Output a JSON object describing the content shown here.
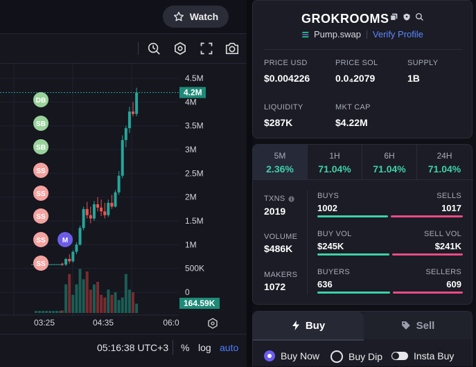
{
  "header": {
    "watch_label": "Watch"
  },
  "chart": {
    "current_price_tag": "4.2M",
    "volume_tag": "164.59K",
    "y_ticks": [
      "4.5M",
      "4M",
      "3.5M",
      "3M",
      "2.5M",
      "2M",
      "1.5M",
      "1M",
      "500K",
      "0"
    ],
    "x_ticks": [
      "03:25",
      "04:35",
      "06:0"
    ],
    "markers": [
      "DB",
      "SB",
      "SB",
      "SS",
      "SS",
      "SS",
      "SS",
      "SS"
    ],
    "m_marker": "M",
    "colors": {
      "up": "#26a69a",
      "down": "#ef5350",
      "buy_marker": "#9ad29b",
      "sell_marker": "#f4a3a0",
      "dev_marker": "#6c5ce7"
    },
    "candles": [
      {
        "o": 0.6,
        "h": 0.62,
        "l": 0.55,
        "c": 0.58
      },
      {
        "o": 0.58,
        "h": 0.72,
        "l": 0.55,
        "c": 0.7
      },
      {
        "o": 0.7,
        "h": 0.8,
        "l": 0.6,
        "c": 0.65
      },
      {
        "o": 0.65,
        "h": 0.88,
        "l": 0.62,
        "c": 0.85
      },
      {
        "o": 0.85,
        "h": 1.05,
        "l": 0.8,
        "c": 1.0
      },
      {
        "o": 1.0,
        "h": 1.4,
        "l": 0.98,
        "c": 1.35
      },
      {
        "o": 1.35,
        "h": 1.8,
        "l": 1.3,
        "c": 1.75
      },
      {
        "o": 1.75,
        "h": 1.9,
        "l": 1.55,
        "c": 1.62
      },
      {
        "o": 1.62,
        "h": 1.8,
        "l": 1.45,
        "c": 1.55
      },
      {
        "o": 1.55,
        "h": 1.92,
        "l": 1.5,
        "c": 1.85
      },
      {
        "o": 1.85,
        "h": 2.0,
        "l": 1.7,
        "c": 1.78
      },
      {
        "o": 1.78,
        "h": 1.95,
        "l": 1.6,
        "c": 1.7
      },
      {
        "o": 1.7,
        "h": 1.88,
        "l": 1.55,
        "c": 1.62
      },
      {
        "o": 1.62,
        "h": 1.95,
        "l": 1.58,
        "c": 1.88
      },
      {
        "o": 1.88,
        "h": 2.05,
        "l": 1.75,
        "c": 1.8
      },
      {
        "o": 1.8,
        "h": 2.15,
        "l": 1.78,
        "c": 2.1
      },
      {
        "o": 2.1,
        "h": 2.55,
        "l": 2.05,
        "c": 2.45
      },
      {
        "o": 2.45,
        "h": 3.3,
        "l": 2.4,
        "c": 3.2
      },
      {
        "o": 3.2,
        "h": 3.5,
        "l": 3.05,
        "c": 3.45
      },
      {
        "o": 3.45,
        "h": 3.9,
        "l": 3.35,
        "c": 3.8
      },
      {
        "o": 3.8,
        "h": 4.0,
        "l": 3.7,
        "c": 3.75
      },
      {
        "o": 3.75,
        "h": 4.3,
        "l": 3.7,
        "c": 4.2
      }
    ],
    "volumes": [
      0.05,
      0.55,
      0.75,
      0.35,
      0.55,
      0.85,
      0.65,
      0.8,
      0.45,
      0.55,
      0.6,
      0.35,
      0.3,
      0.45,
      0.35,
      0.4,
      0.25,
      0.3,
      0.75,
      0.45,
      0.4,
      0.18
    ]
  },
  "bottombar": {
    "time": "05:16:38 UTC+3",
    "percent": "%",
    "log": "log",
    "auto": "auto"
  },
  "token": {
    "name": "GROKROOMS",
    "platform": "Pump.swap",
    "verify": "Verify Profile",
    "price_usd_label": "PRICE USD",
    "price_usd": "$0.004226",
    "price_sol_label": "PRICE SOL",
    "price_sol": "0.0₄2079",
    "supply_label": "SUPPLY",
    "supply": "1B",
    "liquidity_label": "LIQUIDITY",
    "liquidity": "$287K",
    "mktcap_label": "MKT CAP",
    "mktcap": "$4.22M"
  },
  "timeframes": [
    {
      "label": "5M",
      "value": "2.36%"
    },
    {
      "label": "1H",
      "value": "71.04%"
    },
    {
      "label": "6H",
      "value": "71.04%"
    },
    {
      "label": "24H",
      "value": "71.04%"
    }
  ],
  "stats": {
    "txns_label": "TXNS",
    "txns": "2019",
    "volume_label": "VOLUME",
    "volume": "$486K",
    "makers_label": "MAKERS",
    "makers": "1072",
    "buys_label": "BUYS",
    "buys": "1002",
    "sells_label": "SELLS",
    "sells": "1017",
    "buyvol_label": "BUY VOL",
    "buyvol": "$245K",
    "sellvol_label": "SELL VOL",
    "sellvol": "$241K",
    "buyers_label": "BUYERS",
    "buyers": "636",
    "sellers_label": "SELLERS",
    "sellers": "609",
    "buys_ratio": 0.496,
    "vol_ratio": 0.504,
    "buyers_ratio": 0.511,
    "colors": {
      "buy": "#3ed1a8",
      "sell": "#ec4b85"
    }
  },
  "trade": {
    "buy_tab": "Buy",
    "sell_tab": "Sell",
    "options": [
      "Buy Now",
      "Buy Dip",
      "Insta Buy"
    ]
  }
}
